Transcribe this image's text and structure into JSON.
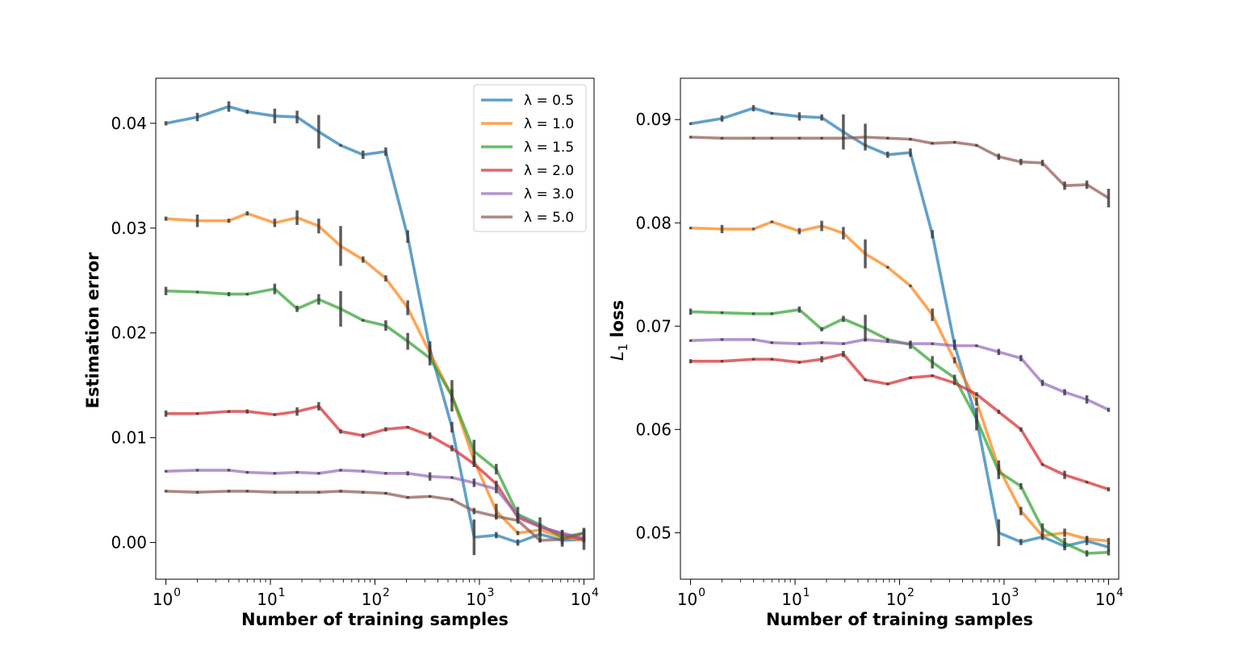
{
  "colors": {
    "series": [
      "#1f77b4",
      "#ff7f0e",
      "#2ca02c",
      "#d62728",
      "#9467bd",
      "#8c564b"
    ],
    "errorbar": "#404040"
  },
  "chart_data": [
    {
      "type": "line",
      "xscale": "log",
      "xlabel": "Number of training samples",
      "ylabel": "Estimation error",
      "xlim": [
        0.8,
        12500
      ],
      "ylim": [
        -0.0035,
        0.0443
      ],
      "xticks": [
        1,
        10,
        100,
        1000,
        10000
      ],
      "xtick_labels": [
        [
          "10",
          "0"
        ],
        [
          "10",
          "1"
        ],
        [
          "10",
          "2"
        ],
        [
          "10",
          "3"
        ],
        [
          "10",
          "4"
        ]
      ],
      "yticks": [
        0.0,
        0.01,
        0.02,
        0.03,
        0.04
      ],
      "ytick_labels": [
        "0.00",
        "0.01",
        "0.02",
        "0.03",
        "0.04"
      ],
      "legend": {
        "position": "top-right",
        "entries": [
          "λ = 0.5",
          "λ = 1.0",
          "λ = 1.5",
          "λ = 2.0",
          "λ = 3.0",
          "λ = 5.0"
        ]
      },
      "x": [
        1,
        2,
        4,
        6,
        11,
        18,
        29,
        47,
        77,
        127,
        206,
        336,
        546,
        889,
        1450,
        2330,
        3800,
        6200,
        10000
      ],
      "series": [
        {
          "name": "λ = 0.5",
          "values": [
            0.04,
            0.0406,
            0.0416,
            0.0411,
            0.0407,
            0.0406,
            0.0392,
            0.0379,
            0.037,
            0.0373,
            0.0292,
            0.0185,
            0.011,
            0.0005,
            0.0007,
            0.0,
            0.0008,
            0.0002,
            0.0003
          ],
          "errors": [
            0.0002,
            0.0004,
            0.0005,
            0.0002,
            0.0007,
            0.0006,
            0.0016,
            0.0001,
            0.0004,
            0.0004,
            0.0006,
            0.0007,
            0.0005,
            0.0017,
            0.0003,
            0.0003,
            0.0008,
            0.0006,
            0.001
          ]
        },
        {
          "name": "λ = 1.0",
          "values": [
            0.0309,
            0.0307,
            0.0307,
            0.0314,
            0.0305,
            0.031,
            0.0302,
            0.0283,
            0.027,
            0.0252,
            0.0224,
            0.0181,
            0.014,
            0.0078,
            0.003,
            0.0009,
            0.0012,
            0.0005,
            0.0002
          ],
          "errors": [
            0.0002,
            0.0006,
            0.0002,
            0.0002,
            0.0004,
            0.0007,
            0.0007,
            0.0019,
            0.0003,
            0.0003,
            0.0007,
            0.0007,
            0.0006,
            0.0005,
            0.0007,
            0.0002,
            0.0006,
            0.0002,
            0.0002
          ]
        },
        {
          "name": "λ = 1.5",
          "values": [
            0.024,
            0.0239,
            0.0237,
            0.0237,
            0.0242,
            0.0223,
            0.0232,
            0.0223,
            0.0212,
            0.0207,
            0.0192,
            0.0176,
            0.014,
            0.0087,
            0.007,
            0.0027,
            0.0017,
            0.0005,
            0.0009
          ],
          "errors": [
            0.0004,
            0.0001,
            0.0002,
            0.0001,
            0.0005,
            0.0003,
            0.0005,
            0.0017,
            0.0001,
            0.0005,
            0.0008,
            0.0007,
            0.0015,
            0.0011,
            0.0005,
            0.0007,
            0.0007,
            0.0007,
            0.0005
          ]
        },
        {
          "name": "λ = 2.0",
          "values": [
            0.0123,
            0.0123,
            0.0125,
            0.0125,
            0.0122,
            0.0125,
            0.013,
            0.0106,
            0.0102,
            0.0108,
            0.011,
            0.0102,
            0.009,
            0.0075,
            0.0056,
            0.0024,
            0.0015,
            0.0008,
            0.0003
          ],
          "errors": [
            0.0003,
            0.0001,
            0.0001,
            0.0002,
            0.0001,
            0.0004,
            0.0004,
            0.0002,
            0.0002,
            0.0002,
            0.0001,
            0.0003,
            0.0003,
            0.0003,
            0.0003,
            0.0002,
            0.0003,
            0.0002,
            0.0002
          ]
        },
        {
          "name": "λ = 3.0",
          "values": [
            0.0068,
            0.0069,
            0.0069,
            0.0067,
            0.0066,
            0.0067,
            0.0066,
            0.0069,
            0.0068,
            0.0066,
            0.0066,
            0.0063,
            0.0062,
            0.0057,
            0.0051,
            0.0026,
            0.0015,
            0.0009,
            0.0004
          ],
          "errors": [
            0.0001,
            0.0001,
            0.0001,
            0.0001,
            0.0001,
            0.0001,
            0.0001,
            0.0001,
            0.0001,
            0.0001,
            0.0002,
            0.0004,
            0.0001,
            0.0004,
            0.0004,
            0.0002,
            0.0003,
            0.0003,
            0.0002
          ]
        },
        {
          "name": "λ = 5.0",
          "values": [
            0.0049,
            0.0048,
            0.0049,
            0.0049,
            0.0048,
            0.0048,
            0.0048,
            0.0049,
            0.0048,
            0.0047,
            0.0043,
            0.0044,
            0.0041,
            0.003,
            0.0025,
            0.0021,
            0.0002,
            0.0003,
            0.0009
          ],
          "errors": [
            0.0001,
            0.0001,
            0.0001,
            0.0001,
            0.0001,
            0.0001,
            0.0001,
            0.0001,
            0.0001,
            0.0001,
            0.0001,
            0.0001,
            0.0001,
            0.0003,
            0.0003,
            0.0003,
            0.0002,
            0.0002,
            0.0003
          ]
        }
      ]
    },
    {
      "type": "line",
      "xscale": "log",
      "xlabel": "Number of training samples",
      "ylabel": "L1 loss",
      "ylabel_main": "L",
      "ylabel_sub": "1",
      "ylabel_rest": "loss",
      "xlim": [
        0.8,
        12500
      ],
      "ylim": [
        0.0455,
        0.094
      ],
      "xticks": [
        1,
        10,
        100,
        1000,
        10000
      ],
      "xtick_labels": [
        [
          "10",
          "0"
        ],
        [
          "10",
          "1"
        ],
        [
          "10",
          "2"
        ],
        [
          "10",
          "3"
        ],
        [
          "10",
          "4"
        ]
      ],
      "yticks": [
        0.05,
        0.06,
        0.07,
        0.08,
        0.09
      ],
      "ytick_labels": [
        "0.05",
        "0.06",
        "0.07",
        "0.08",
        "0.09"
      ],
      "x": [
        1,
        2,
        4,
        6,
        11,
        18,
        29,
        47,
        77,
        127,
        206,
        336,
        546,
        889,
        1450,
        2330,
        3800,
        6200,
        10000
      ],
      "series": [
        {
          "name": "λ = 0.5",
          "values": [
            0.0896,
            0.0901,
            0.0911,
            0.0906,
            0.0903,
            0.0902,
            0.0888,
            0.0875,
            0.0866,
            0.0868,
            0.0789,
            0.0682,
            0.061,
            0.05,
            0.0491,
            0.0496,
            0.0487,
            0.0492,
            0.0486
          ],
          "errors": [
            0.0001,
            0.0003,
            0.0003,
            0.0001,
            0.0004,
            0.0003,
            0.0017,
            0.0001,
            0.0003,
            0.0004,
            0.0004,
            0.0005,
            0.0004,
            0.0013,
            0.0003,
            0.0003,
            0.0004,
            0.0004,
            0.0004
          ]
        },
        {
          "name": "λ = 1.0",
          "values": [
            0.0795,
            0.0794,
            0.0794,
            0.0801,
            0.0792,
            0.0797,
            0.079,
            0.077,
            0.0757,
            0.0739,
            0.0711,
            0.0667,
            0.0627,
            0.0563,
            0.0521,
            0.0497,
            0.05,
            0.0494,
            0.0492
          ],
          "errors": [
            0.0001,
            0.0004,
            0.0001,
            0.0001,
            0.0003,
            0.0005,
            0.0006,
            0.0014,
            0.0001,
            0.0001,
            0.0006,
            0.0003,
            0.0004,
            0.0007,
            0.0004,
            0.0002,
            0.0004,
            0.0003,
            0.0003
          ]
        },
        {
          "name": "λ = 1.5",
          "values": [
            0.0714,
            0.0713,
            0.0712,
            0.0712,
            0.0716,
            0.0697,
            0.0707,
            0.0698,
            0.0687,
            0.0682,
            0.0665,
            0.065,
            0.061,
            0.0559,
            0.0545,
            0.0504,
            0.049,
            0.048,
            0.0481
          ],
          "errors": [
            0.0003,
            0.0001,
            0.0001,
            0.0001,
            0.0003,
            0.0002,
            0.0003,
            0.0013,
            0.0001,
            0.0004,
            0.0006,
            0.0003,
            0.0011,
            0.0007,
            0.0003,
            0.0005,
            0.0005,
            0.0003,
            0.0003
          ]
        },
        {
          "name": "λ = 2.0",
          "values": [
            0.0666,
            0.0666,
            0.0668,
            0.0668,
            0.0665,
            0.0668,
            0.0673,
            0.0648,
            0.0644,
            0.065,
            0.0652,
            0.0645,
            0.0634,
            0.0617,
            0.06,
            0.0566,
            0.0556,
            0.0549,
            0.0542
          ],
          "errors": [
            0.0002,
            0.0001,
            0.0001,
            0.0001,
            0.0001,
            0.0003,
            0.0003,
            0.0001,
            0.0001,
            0.0001,
            0.0001,
            0.0002,
            0.0002,
            0.0002,
            0.0002,
            0.0001,
            0.0004,
            0.0001,
            0.0002
          ]
        },
        {
          "name": "λ = 3.0",
          "values": [
            0.0686,
            0.0687,
            0.0687,
            0.0684,
            0.0683,
            0.0684,
            0.0683,
            0.0687,
            0.0685,
            0.0683,
            0.0683,
            0.0681,
            0.0681,
            0.0675,
            0.0669,
            0.0645,
            0.0636,
            0.0629,
            0.0619
          ],
          "errors": [
            0.0001,
            0.0001,
            0.0001,
            0.0001,
            0.0001,
            0.0001,
            0.0001,
            0.0001,
            0.0001,
            0.0001,
            0.0001,
            0.0001,
            0.0001,
            0.0003,
            0.0003,
            0.0003,
            0.0003,
            0.0004,
            0.0002
          ]
        },
        {
          "name": "λ = 5.0",
          "values": [
            0.0883,
            0.0882,
            0.0882,
            0.0882,
            0.0882,
            0.0882,
            0.0882,
            0.0883,
            0.0882,
            0.0881,
            0.0877,
            0.0878,
            0.0875,
            0.0864,
            0.0859,
            0.0858,
            0.0836,
            0.0837,
            0.0824
          ],
          "errors": [
            0.0001,
            0.0001,
            0.0001,
            0.0001,
            0.0001,
            0.0001,
            0.0001,
            0.0013,
            0.0001,
            0.0001,
            0.0001,
            0.0001,
            0.0001,
            0.0003,
            0.0003,
            0.0003,
            0.0004,
            0.0004,
            0.0009
          ]
        }
      ]
    }
  ]
}
